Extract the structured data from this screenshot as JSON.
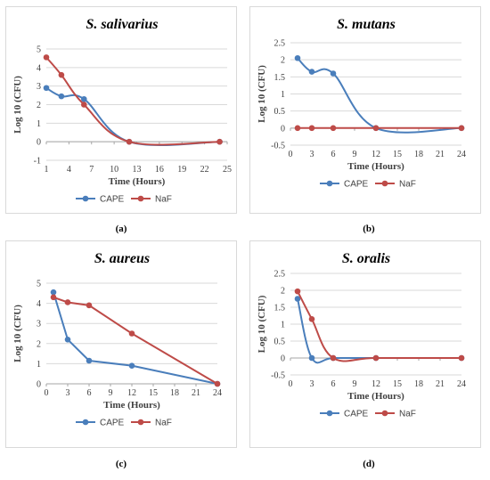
{
  "colors": {
    "CAPE": "#4a7ebb",
    "NaF": "#be4b48",
    "grid": "#d9d9d9",
    "axis": "#a6a6a6"
  },
  "chart_data": [
    {
      "type": "line",
      "panel_label": "(a)",
      "title": "S. salivarius",
      "xlabel": "Time (Hours)",
      "ylabel": "Log 10 (CFU)",
      "xlim": [
        1,
        25
      ],
      "ylim": [
        -1,
        5
      ],
      "xticks": [
        1,
        4,
        7,
        10,
        13,
        16,
        19,
        22,
        25
      ],
      "yticks": [
        -1,
        0,
        1,
        2,
        3,
        4,
        5
      ],
      "grid": true,
      "legend": "bottom",
      "series": [
        {
          "name": "CAPE",
          "x": [
            1,
            3,
            6,
            12,
            24
          ],
          "y": [
            2.9,
            2.45,
            2.3,
            0,
            0
          ]
        },
        {
          "name": "NaF",
          "x": [
            1,
            3,
            6,
            12,
            24
          ],
          "y": [
            4.55,
            3.6,
            2.0,
            0,
            0
          ]
        }
      ]
    },
    {
      "type": "line",
      "panel_label": "(b)",
      "title": "S. mutans",
      "xlabel": "Time (Hours)",
      "ylabel": "Log 10 (CFU)",
      "xlim": [
        0,
        24
      ],
      "ylim": [
        -0.5,
        2.5
      ],
      "xticks": [
        0,
        3,
        6,
        9,
        12,
        15,
        18,
        21,
        24
      ],
      "yticks": [
        -0.5,
        0,
        0.5,
        1,
        1.5,
        2,
        2.5
      ],
      "grid": true,
      "legend": "bottom",
      "series": [
        {
          "name": "CAPE",
          "x": [
            1,
            3,
            6,
            12,
            24
          ],
          "y": [
            2.05,
            1.65,
            1.6,
            0,
            0
          ]
        },
        {
          "name": "NaF",
          "x": [
            1,
            3,
            6,
            12,
            24
          ],
          "y": [
            0,
            0,
            0,
            0,
            0
          ]
        }
      ]
    },
    {
      "type": "line",
      "panel_label": "(c)",
      "title": "S. aureus",
      "xlabel": "Time (Hours)",
      "ylabel": "Log 10 (CFU)",
      "xlim": [
        0,
        24
      ],
      "ylim": [
        0,
        5
      ],
      "xticks": [
        0,
        3,
        6,
        9,
        12,
        15,
        18,
        21,
        24
      ],
      "yticks": [
        0,
        1,
        2,
        3,
        4,
        5
      ],
      "grid": true,
      "legend": "bottom",
      "series": [
        {
          "name": "CAPE",
          "x": [
            1,
            3,
            6,
            12,
            24
          ],
          "y": [
            4.55,
            2.2,
            1.15,
            0.9,
            0
          ]
        },
        {
          "name": "NaF",
          "x": [
            1,
            3,
            6,
            12,
            24
          ],
          "y": [
            4.3,
            4.05,
            3.9,
            2.5,
            0
          ]
        }
      ]
    },
    {
      "type": "line",
      "panel_label": "(d)",
      "title": "S. oralis",
      "xlabel": "Time (Hours)",
      "ylabel": "Log 10 (CFU)",
      "xlim": [
        0,
        24
      ],
      "ylim": [
        -0.5,
        2.5
      ],
      "xticks": [
        0,
        3,
        6,
        9,
        12,
        15,
        18,
        21,
        24
      ],
      "yticks": [
        -0.5,
        0,
        0.5,
        1,
        1.5,
        2,
        2.5
      ],
      "grid": true,
      "legend": "bottom",
      "series": [
        {
          "name": "CAPE",
          "x": [
            1,
            3,
            6,
            12,
            24
          ],
          "y": [
            1.75,
            0,
            0,
            0,
            0
          ]
        },
        {
          "name": "NaF",
          "x": [
            1,
            3,
            6,
            12,
            24
          ],
          "y": [
            1.97,
            1.15,
            0,
            0,
            0
          ]
        }
      ]
    }
  ]
}
